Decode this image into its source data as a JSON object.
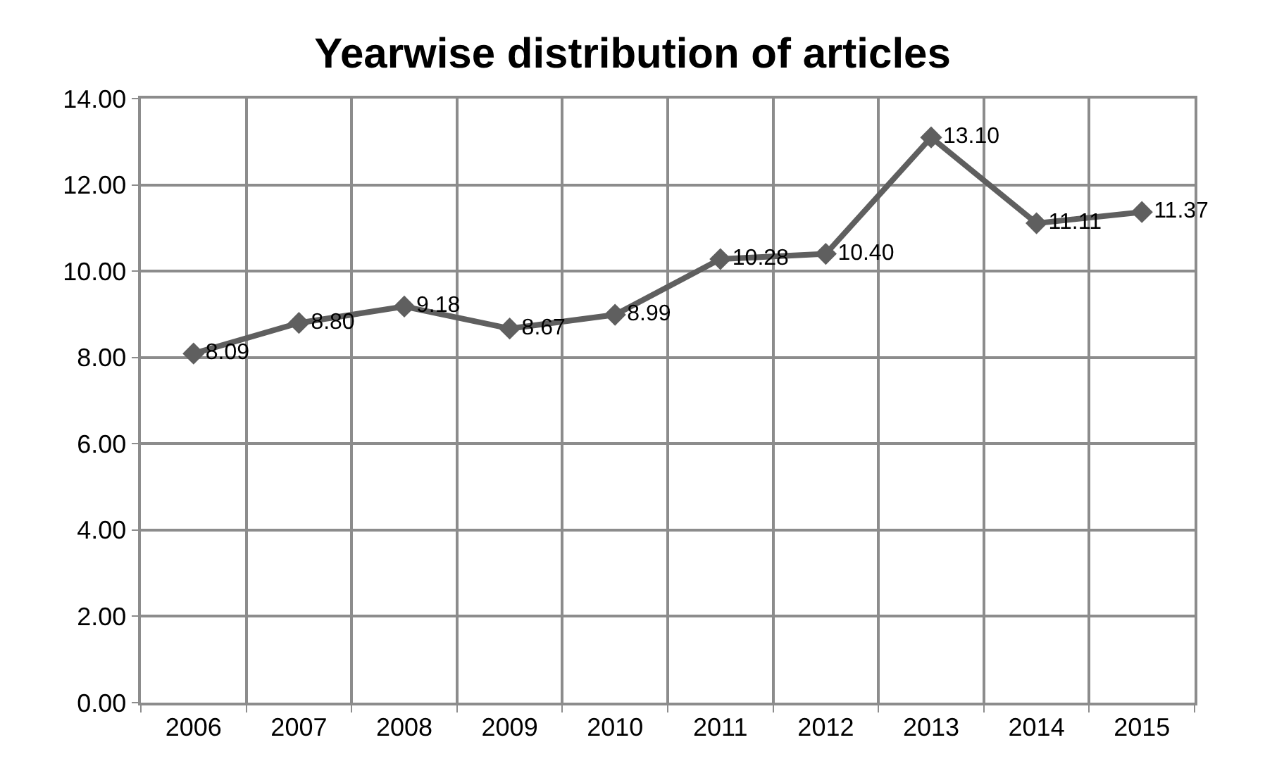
{
  "chart_data": {
    "type": "line",
    "title": "Yearwise distribution of articles",
    "categories": [
      "2006",
      "2007",
      "2008",
      "2009",
      "2010",
      "2011",
      "2012",
      "2013",
      "2014",
      "2015"
    ],
    "series": [
      {
        "color": "#5f5f5f",
        "values": [
          8.09,
          8.8,
          9.18,
          8.67,
          8.99,
          10.28,
          10.4,
          13.1,
          11.11,
          11.37
        ],
        "value_labels": [
          "8.09",
          "8.80",
          "9.18",
          "8.67",
          "8.99",
          "10.28",
          "10.40",
          "13.10",
          "11.11",
          "11.37"
        ]
      }
    ],
    "ylim": [
      0,
      14
    ],
    "yticks": [
      {
        "value": 0,
        "label": "0.00"
      },
      {
        "value": 2,
        "label": "2.00"
      },
      {
        "value": 4,
        "label": "4.00"
      },
      {
        "value": 6,
        "label": "6.00"
      },
      {
        "value": 8,
        "label": "8.00"
      },
      {
        "value": 10,
        "label": "10.00"
      },
      {
        "value": 12,
        "label": "12.00"
      },
      {
        "value": 14,
        "label": "14.00"
      }
    ],
    "grid": true,
    "marker": "diamond",
    "line_style": "solid"
  }
}
